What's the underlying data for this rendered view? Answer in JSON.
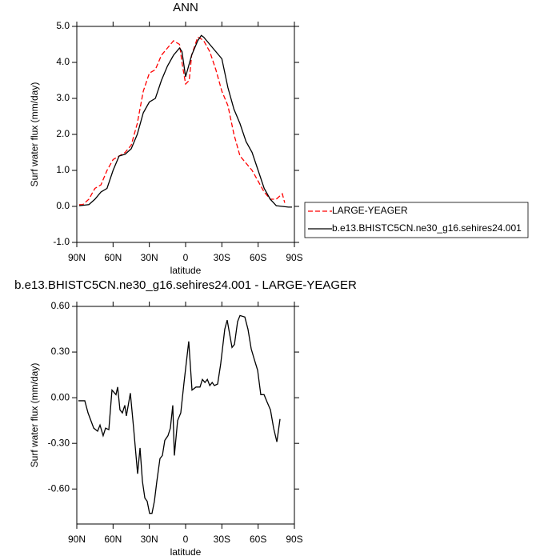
{
  "chart_data": [
    {
      "type": "line",
      "title": "ANN",
      "x_label": "latitude",
      "y_label": "Surf water flux (mm/day)",
      "xlim": [
        90,
        -90
      ],
      "ylim": [
        -1,
        5
      ],
      "xticks": [
        {
          "value": 90,
          "label": "90N"
        },
        {
          "value": 60,
          "label": "60N"
        },
        {
          "value": 30,
          "label": "30N"
        },
        0,
        {
          "value": -30,
          "label": "30S"
        },
        {
          "value": -60,
          "label": "60S"
        },
        {
          "value": -90,
          "label": "90S"
        }
      ],
      "yticks": [
        {
          "value": 5,
          "label": "5.0"
        },
        {
          "value": 4,
          "label": "4.0"
        },
        {
          "value": 3,
          "label": "3.0"
        },
        {
          "value": 2,
          "label": "2.0"
        },
        {
          "value": 1,
          "label": "1.0"
        },
        {
          "value": 0,
          "label": "0.0"
        },
        {
          "value": -1,
          "label": "-1.0"
        }
      ],
      "legend": "outside-right",
      "series": [
        {
          "name": "LARGE-YEAGER",
          "color": "#ff0000",
          "style": "dashed",
          "x": [
            88,
            85,
            80,
            75,
            70,
            65,
            60,
            55,
            50,
            45,
            40,
            35,
            30,
            25,
            20,
            15,
            10,
            5,
            3,
            0,
            -3,
            -5,
            -10,
            -13,
            -15,
            -20,
            -25,
            -30,
            -35,
            -40,
            -45,
            -50,
            -55,
            -60,
            -65,
            -70,
            -75,
            -80,
            -82
          ],
          "values": [
            0.05,
            0.05,
            0.2,
            0.5,
            0.6,
            1.0,
            1.3,
            1.4,
            1.5,
            1.7,
            2.3,
            3.2,
            3.7,
            3.8,
            4.2,
            4.4,
            4.6,
            4.5,
            4.0,
            3.4,
            3.5,
            4.2,
            4.7,
            4.65,
            4.6,
            4.3,
            3.8,
            3.2,
            2.8,
            2.0,
            1.4,
            1.2,
            1.0,
            0.7,
            0.4,
            0.2,
            0.2,
            0.35,
            0.1
          ]
        },
        {
          "name": "b.e13.BHISTC5CN.ne30_g16.sehires24.001",
          "color": "#000000",
          "style": "solid",
          "x": [
            88,
            85,
            80,
            75,
            70,
            65,
            60,
            55,
            50,
            45,
            40,
            35,
            30,
            25,
            20,
            15,
            10,
            5,
            3,
            0,
            -5,
            -10,
            -13,
            -15,
            -20,
            -25,
            -30,
            -35,
            -40,
            -45,
            -50,
            -55,
            -60,
            -65,
            -70,
            -75,
            -80,
            -85,
            -88
          ],
          "values": [
            0.02,
            0.03,
            0.05,
            0.2,
            0.4,
            0.5,
            1.0,
            1.4,
            1.45,
            1.6,
            2.0,
            2.6,
            2.9,
            3.0,
            3.5,
            3.9,
            4.2,
            4.4,
            4.3,
            3.6,
            4.2,
            4.6,
            4.75,
            4.7,
            4.5,
            4.3,
            4.1,
            3.3,
            2.7,
            2.3,
            1.8,
            1.5,
            1.0,
            0.5,
            0.2,
            0.02,
            0.0,
            -0.02,
            -0.02
          ]
        }
      ]
    },
    {
      "type": "line",
      "title": "b.e13.BHISTC5CN.ne30_g16.sehires24.001 - LARGE-YEAGER",
      "x_label": "latitude",
      "y_label": "Surf water flux (mm/day)",
      "xlim": [
        90,
        -90
      ],
      "ylim": [
        -0.83,
        0.6
      ],
      "xticks": [
        {
          "value": 90,
          "label": "90N"
        },
        {
          "value": 60,
          "label": "60N"
        },
        {
          "value": 30,
          "label": "30N"
        },
        0,
        {
          "value": -30,
          "label": "30S"
        },
        {
          "value": -60,
          "label": "60S"
        },
        {
          "value": -90,
          "label": "90S"
        }
      ],
      "yticks": [
        {
          "value": 0.6,
          "label": "0.60"
        },
        {
          "value": 0.3,
          "label": "0.30"
        },
        {
          "value": 0,
          "label": "0.00"
        },
        {
          "value": -0.3,
          "label": "-0.30"
        },
        {
          "value": -0.6,
          "label": "-0.60"
        }
      ],
      "series": [
        {
          "color": "#000000",
          "style": "solid",
          "x": [
            88.7,
            83.4,
            80.7,
            76,
            72.8,
            70.8,
            68.2,
            66.2,
            63.5,
            60.9,
            57.6,
            56.2,
            54.3,
            52.3,
            50.3,
            49,
            45.7,
            43,
            39.7,
            37.7,
            35.7,
            33.7,
            31.8,
            29.8,
            27.8,
            25.8,
            23.8,
            21.2,
            19.2,
            17.2,
            14.6,
            12.6,
            10.6,
            9.3,
            6.6,
            4,
            1.3,
            -2.6,
            -5.3,
            -8.6,
            -11.9,
            -13.9,
            -16,
            -18,
            -20,
            -22,
            -23.8,
            -26.5,
            -29,
            -32.4,
            -34.4,
            -36.4,
            -38.4,
            -40.4,
            -43,
            -45,
            -49,
            -51.6,
            -54.3,
            -56.9,
            -59.6,
            -62.2,
            -64.9,
            -67.5,
            -70.2,
            -72.8,
            -75.5,
            -78.1
          ],
          "values": [
            -0.02,
            -0.02,
            -0.1,
            -0.2,
            -0.22,
            -0.18,
            -0.25,
            -0.2,
            -0.21,
            0.05,
            0.02,
            0.07,
            -0.08,
            -0.1,
            -0.05,
            -0.12,
            0.03,
            -0.2,
            -0.5,
            -0.33,
            -0.55,
            -0.66,
            -0.68,
            -0.76,
            -0.76,
            -0.68,
            -0.55,
            -0.4,
            -0.38,
            -0.28,
            -0.25,
            -0.2,
            -0.05,
            -0.38,
            -0.15,
            -0.1,
            0.1,
            0.37,
            0.05,
            0.07,
            0.07,
            0.12,
            0.1,
            0.12,
            0.08,
            0.1,
            0.08,
            0.09,
            0.22,
            0.45,
            0.51,
            0.42,
            0.33,
            0.35,
            0.5,
            0.54,
            0.53,
            0.45,
            0.32,
            0.25,
            0.18,
            0.02,
            0.02,
            -0.03,
            -0.08,
            -0.2,
            -0.29,
            -0.14
          ]
        }
      ]
    }
  ]
}
